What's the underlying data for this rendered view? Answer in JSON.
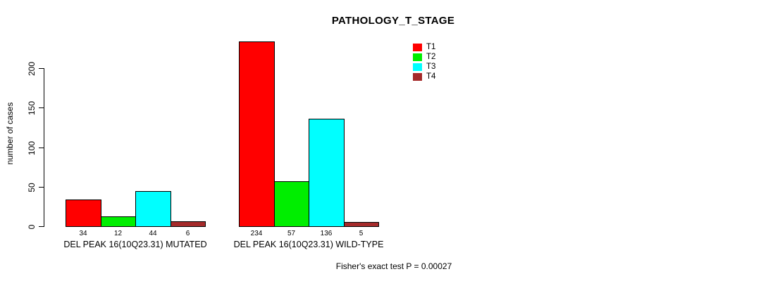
{
  "chart_data": {
    "type": "bar",
    "title": "PATHOLOGY_T_STAGE",
    "ylabel": "number of cases",
    "xlabel": "",
    "footnote": "Fisher's exact test P = 0.00027",
    "categories": [
      "DEL PEAK 16(10Q23.31) MUTATED",
      "DEL PEAK 16(10Q23.31) WILD-TYPE"
    ],
    "series": [
      {
        "name": "T1",
        "color": "#FF0000",
        "values": [
          34,
          234
        ]
      },
      {
        "name": "T2",
        "color": "#00EE00",
        "values": [
          12,
          57
        ]
      },
      {
        "name": "T3",
        "color": "#00FFFF",
        "values": [
          44,
          136
        ]
      },
      {
        "name": "T4",
        "color": "#A52A2A",
        "values": [
          6,
          5
        ]
      }
    ],
    "y_ticks": [
      0,
      50,
      100,
      150,
      200
    ],
    "ylim": [
      0,
      240
    ],
    "grid": false,
    "legend_position": "top-right",
    "bar_value_labels_shown": true
  }
}
